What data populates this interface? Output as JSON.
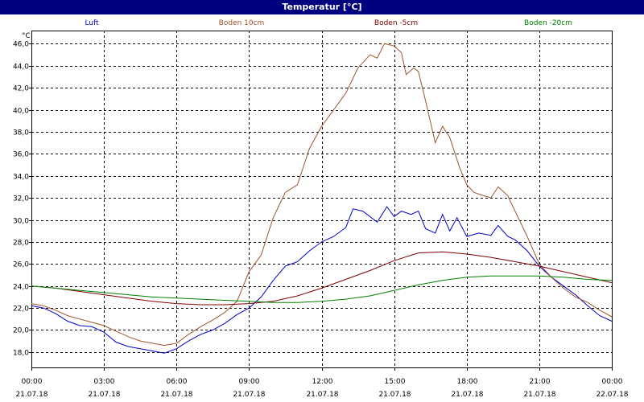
{
  "window": {
    "title": "Temperatur [°C]"
  },
  "chart_data": {
    "type": "line",
    "title": "Temperatur [°C]",
    "ylabel": "°C",
    "xlabel": "",
    "ylim": [
      16.6,
      47.2
    ],
    "xlim": [
      0,
      24
    ],
    "grid": true,
    "legend_placement": "top",
    "y_ticks": [
      "46,0",
      "44,0",
      "42,0",
      "40,0",
      "38,0",
      "36,0",
      "34,0",
      "32,0",
      "30,0",
      "28,0",
      "26,0",
      "24,0",
      "22,0",
      "20,0",
      "18,0"
    ],
    "x_ticks": [
      {
        "time": "00:00",
        "date": "21.07.18"
      },
      {
        "time": "03:00",
        "date": "21.07.18"
      },
      {
        "time": "06:00",
        "date": "21.07.18"
      },
      {
        "time": "09:00",
        "date": "21.07.18"
      },
      {
        "time": "12:00",
        "date": "21.07.18"
      },
      {
        "time": "15:00",
        "date": "21.07.18"
      },
      {
        "time": "18:00",
        "date": "21.07.18"
      },
      {
        "time": "21:00",
        "date": "21.07.18"
      },
      {
        "time": "00:00",
        "date": "22.07.18"
      }
    ],
    "x_unit": "hours since 21.07.18 00:00",
    "series": [
      {
        "name": "Luft",
        "color": "#0000cc",
        "points": [
          [
            0,
            22.2
          ],
          [
            0.5,
            22.0
          ],
          [
            1,
            21.5
          ],
          [
            1.5,
            20.8
          ],
          [
            2,
            20.4
          ],
          [
            2.5,
            20.3
          ],
          [
            3,
            19.8
          ],
          [
            3.5,
            18.9
          ],
          [
            4,
            18.5
          ],
          [
            4.5,
            18.3
          ],
          [
            5,
            18.1
          ],
          [
            5.5,
            17.9
          ],
          [
            6,
            18.3
          ],
          [
            6.5,
            19.0
          ],
          [
            7,
            19.6
          ],
          [
            7.5,
            20.0
          ],
          [
            8,
            20.6
          ],
          [
            8.5,
            21.4
          ],
          [
            9,
            22.0
          ],
          [
            9.5,
            23.0
          ],
          [
            10,
            24.5
          ],
          [
            10.5,
            25.8
          ],
          [
            11,
            26.2
          ],
          [
            11.5,
            27.2
          ],
          [
            12,
            28.0
          ],
          [
            12.5,
            28.5
          ],
          [
            13,
            29.3
          ],
          [
            13.3,
            31.0
          ],
          [
            13.7,
            30.8
          ],
          [
            14,
            30.3
          ],
          [
            14.3,
            29.8
          ],
          [
            14.7,
            31.2
          ],
          [
            15,
            30.3
          ],
          [
            15.3,
            30.8
          ],
          [
            15.7,
            30.5
          ],
          [
            16,
            30.8
          ],
          [
            16.3,
            29.2
          ],
          [
            16.7,
            28.8
          ],
          [
            17,
            30.5
          ],
          [
            17.3,
            29.0
          ],
          [
            17.6,
            30.2
          ],
          [
            18,
            28.5
          ],
          [
            18.5,
            28.8
          ],
          [
            19,
            28.6
          ],
          [
            19.3,
            29.5
          ],
          [
            19.7,
            28.5
          ],
          [
            20,
            28.2
          ],
          [
            20.5,
            27.2
          ],
          [
            21,
            25.8
          ],
          [
            21.5,
            24.8
          ],
          [
            22,
            24.0
          ],
          [
            22.5,
            23.2
          ],
          [
            23,
            22.2
          ],
          [
            23.5,
            21.3
          ],
          [
            24,
            20.8
          ]
        ]
      },
      {
        "name": "Boden 10cm",
        "color": "#a0522d",
        "points": [
          [
            0,
            22.4
          ],
          [
            0.5,
            22.2
          ],
          [
            1,
            21.8
          ],
          [
            1.5,
            21.3
          ],
          [
            2,
            21.0
          ],
          [
            2.5,
            20.7
          ],
          [
            3,
            20.4
          ],
          [
            3.5,
            19.9
          ],
          [
            4,
            19.4
          ],
          [
            4.5,
            19.0
          ],
          [
            5,
            18.8
          ],
          [
            5.5,
            18.6
          ],
          [
            6,
            18.8
          ],
          [
            6.5,
            19.6
          ],
          [
            7,
            20.3
          ],
          [
            7.5,
            20.9
          ],
          [
            8,
            21.6
          ],
          [
            8.5,
            22.6
          ],
          [
            9,
            25.3
          ],
          [
            9.5,
            26.8
          ],
          [
            10,
            30.2
          ],
          [
            10.5,
            32.5
          ],
          [
            11,
            33.2
          ],
          [
            11.5,
            36.5
          ],
          [
            12,
            38.5
          ],
          [
            12.5,
            40.0
          ],
          [
            13,
            41.5
          ],
          [
            13.5,
            43.8
          ],
          [
            14,
            45.0
          ],
          [
            14.3,
            44.7
          ],
          [
            14.6,
            46.0
          ],
          [
            15,
            45.8
          ],
          [
            15.3,
            45.2
          ],
          [
            15.5,
            43.2
          ],
          [
            15.8,
            43.8
          ],
          [
            16,
            43.5
          ],
          [
            16.3,
            40.8
          ],
          [
            16.7,
            37.0
          ],
          [
            17,
            38.5
          ],
          [
            17.3,
            37.5
          ],
          [
            17.7,
            34.8
          ],
          [
            18,
            33.2
          ],
          [
            18.3,
            32.5
          ],
          [
            18.7,
            32.2
          ],
          [
            19,
            32.0
          ],
          [
            19.3,
            33.0
          ],
          [
            19.7,
            32.2
          ],
          [
            20,
            30.8
          ],
          [
            20.5,
            28.5
          ],
          [
            21,
            26.0
          ],
          [
            21.5,
            24.8
          ],
          [
            22,
            23.8
          ],
          [
            22.5,
            23.0
          ],
          [
            23,
            22.5
          ],
          [
            23.5,
            21.8
          ],
          [
            24,
            21.2
          ]
        ]
      },
      {
        "name": "Boden -5cm",
        "color": "#800000",
        "points": [
          [
            0,
            24.0
          ],
          [
            1,
            23.8
          ],
          [
            2,
            23.5
          ],
          [
            3,
            23.2
          ],
          [
            4,
            22.9
          ],
          [
            5,
            22.6
          ],
          [
            6,
            22.4
          ],
          [
            7,
            22.3
          ],
          [
            8,
            22.3
          ],
          [
            9,
            22.4
          ],
          [
            10,
            22.6
          ],
          [
            11,
            23.1
          ],
          [
            12,
            23.8
          ],
          [
            13,
            24.6
          ],
          [
            14,
            25.4
          ],
          [
            15,
            26.3
          ],
          [
            16,
            27.0
          ],
          [
            17,
            27.1
          ],
          [
            18,
            26.9
          ],
          [
            19,
            26.6
          ],
          [
            20,
            26.2
          ],
          [
            21,
            25.8
          ],
          [
            22,
            25.3
          ],
          [
            23,
            24.8
          ],
          [
            24,
            24.3
          ]
        ]
      },
      {
        "name": "Boden -20cm",
        "color": "#008000",
        "points": [
          [
            0,
            24.0
          ],
          [
            1,
            23.8
          ],
          [
            2,
            23.6
          ],
          [
            3,
            23.4
          ],
          [
            4,
            23.2
          ],
          [
            5,
            23.0
          ],
          [
            6,
            22.9
          ],
          [
            7,
            22.8
          ],
          [
            8,
            22.7
          ],
          [
            9,
            22.6
          ],
          [
            10,
            22.5
          ],
          [
            11,
            22.5
          ],
          [
            12,
            22.6
          ],
          [
            13,
            22.8
          ],
          [
            14,
            23.1
          ],
          [
            15,
            23.6
          ],
          [
            16,
            24.1
          ],
          [
            17,
            24.5
          ],
          [
            18,
            24.8
          ],
          [
            19,
            24.9
          ],
          [
            20,
            24.9
          ],
          [
            21,
            24.9
          ],
          [
            22,
            24.8
          ],
          [
            23,
            24.6
          ],
          [
            24,
            24.5
          ]
        ]
      }
    ]
  }
}
